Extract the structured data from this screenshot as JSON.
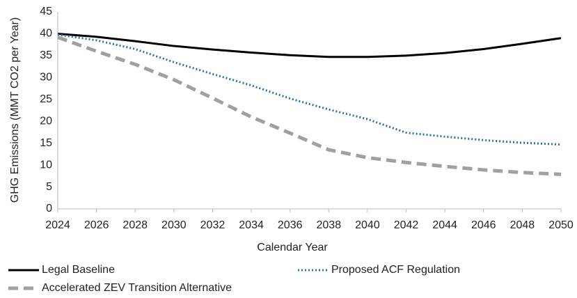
{
  "chart_data": {
    "type": "line",
    "x_label": "Calendar Year",
    "y_label": "GHG Emissions (MMT CO2 per Year)",
    "x": [
      2024,
      2026,
      2028,
      2030,
      2032,
      2034,
      2036,
      2038,
      2040,
      2042,
      2044,
      2046,
      2048,
      2050
    ],
    "series": [
      {
        "name": "Legal Baseline",
        "color": "#000000",
        "style": "solid",
        "values": [
          40,
          39.3,
          38.3,
          37.2,
          36.4,
          35.7,
          35.1,
          34.7,
          34.7,
          35.0,
          35.6,
          36.5,
          37.7,
          39.0
        ]
      },
      {
        "name": "Proposed ACF Regulation",
        "color": "#2a7595",
        "style": "dotted",
        "values": [
          39.8,
          38.5,
          36.5,
          33.5,
          30.8,
          28.2,
          25.2,
          22.7,
          20.5,
          17.4,
          16.5,
          15.7,
          15.1,
          14.7
        ]
      },
      {
        "name": "Accelerated ZEV Transition Alternative",
        "color": "#a0a0a0",
        "style": "dashed",
        "values": [
          39.2,
          36.0,
          33.0,
          29.5,
          25.3,
          21.0,
          17.3,
          13.5,
          11.7,
          10.6,
          9.7,
          8.9,
          8.3,
          7.9
        ]
      }
    ],
    "xlim": [
      2024,
      2050
    ],
    "xticks": [
      2024,
      2026,
      2028,
      2030,
      2032,
      2034,
      2036,
      2038,
      2040,
      2042,
      2044,
      2046,
      2048,
      2050
    ],
    "ylim": [
      0,
      45
    ],
    "yticks": [
      0,
      5,
      10,
      15,
      20,
      25,
      30,
      35,
      40,
      45
    ],
    "grid": false,
    "legend": "bottom"
  }
}
